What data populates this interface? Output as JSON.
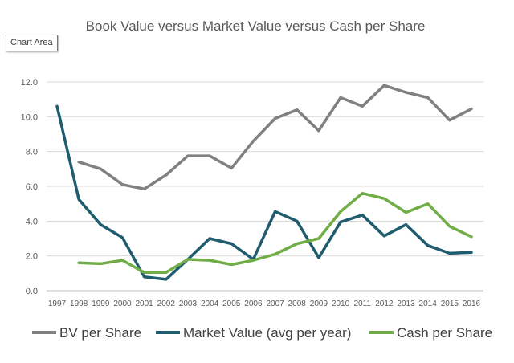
{
  "tooltip": {
    "label": "Chart Area"
  },
  "chart_data": {
    "type": "line",
    "title": "Book Value versus Market Value versus Cash per Share",
    "xlabel": "",
    "ylabel": "",
    "x": [
      "1997",
      "1998",
      "1999",
      "2000",
      "2001",
      "2002",
      "2003",
      "2004",
      "2005",
      "2006",
      "2007",
      "2008",
      "2009",
      "2010",
      "2011",
      "2012",
      "2013",
      "2014",
      "2015",
      "2016"
    ],
    "ylim": [
      0,
      12
    ],
    "yticks": [
      0,
      2,
      4,
      6,
      8,
      10,
      12
    ],
    "ytick_labels": [
      "0.0",
      "2.0",
      "4.0",
      "6.0",
      "8.0",
      "10.0",
      "12.0"
    ],
    "grid": true,
    "legend_position": "bottom",
    "series": [
      {
        "name": "BV per Share",
        "color": "#808080",
        "values": [
          null,
          7.4,
          7.0,
          6.1,
          5.85,
          6.65,
          7.75,
          7.75,
          7.05,
          8.6,
          9.9,
          10.4,
          9.2,
          11.1,
          10.6,
          11.8,
          11.4,
          11.1,
          9.8,
          10.45
        ]
      },
      {
        "name": "Market Value (avg per year)",
        "color": "#1F5C6E",
        "values": [
          10.6,
          5.25,
          3.8,
          3.05,
          0.8,
          0.65,
          1.8,
          3.0,
          2.7,
          1.8,
          4.55,
          4.0,
          1.9,
          3.95,
          4.35,
          3.15,
          3.8,
          2.6,
          2.15,
          2.2
        ]
      },
      {
        "name": "Cash per Share",
        "color": "#70AD47",
        "values": [
          null,
          1.6,
          1.55,
          1.75,
          1.05,
          1.05,
          1.8,
          1.75,
          1.5,
          1.75,
          2.1,
          2.7,
          3.0,
          4.55,
          5.6,
          5.3,
          4.5,
          5.0,
          3.7,
          3.1
        ]
      }
    ]
  }
}
